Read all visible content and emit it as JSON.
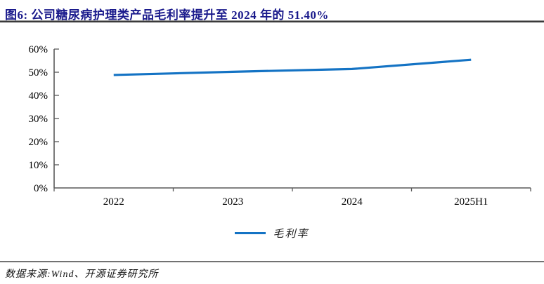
{
  "title": "图6: 公司糖尿病护理类产品毛利率提升至 2024 年的 51.40%",
  "source": "数据来源:Wind、开源证券研究所",
  "legend": {
    "label": "毛利率"
  },
  "colors": {
    "title": "#1A1A8C",
    "line": "#1473C4",
    "axis": "#595959",
    "separator": "#3A3A3A",
    "tick_label": "#000000"
  },
  "chart_data": {
    "type": "line",
    "categories": [
      "2022",
      "2023",
      "2024",
      "2025H1"
    ],
    "series": [
      {
        "name": "毛利率",
        "values": [
          48.8,
          50.2,
          51.4,
          55.4
        ]
      }
    ],
    "title": "",
    "xlabel": "",
    "ylabel": "",
    "ylim": [
      0,
      60
    ],
    "ytick_step": 10,
    "ytick_labels": [
      "0%",
      "10%",
      "20%",
      "30%",
      "40%",
      "50%",
      "60%"
    ],
    "grid": false,
    "legend_position": "bottom"
  }
}
